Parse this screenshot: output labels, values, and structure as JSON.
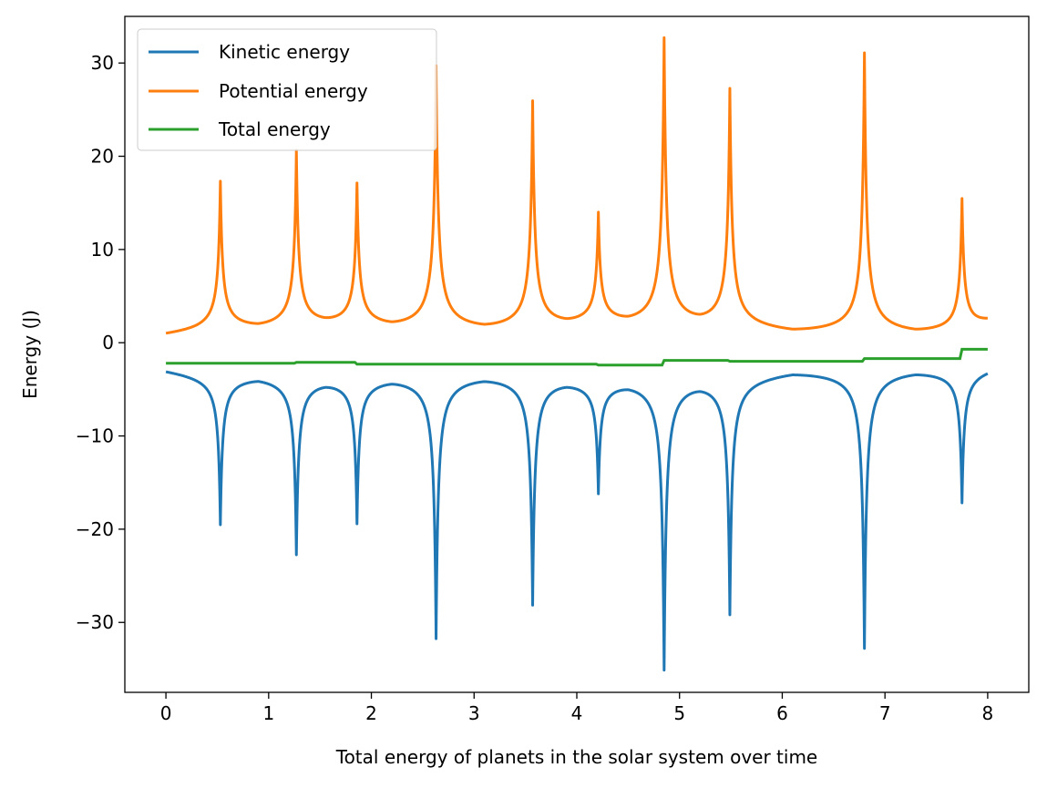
{
  "chart_data": {
    "type": "line",
    "title": "",
    "xlabel": "Total energy of planets in the solar system over time",
    "ylabel": "Energy (J)",
    "xlim": [
      -0.4,
      8.4
    ],
    "ylim": [
      -37.5,
      35
    ],
    "xticks": [
      0,
      1,
      2,
      3,
      4,
      5,
      6,
      7,
      8
    ],
    "yticks": [
      -30,
      -20,
      -10,
      0,
      10,
      20,
      30
    ],
    "ytick_labels": [
      "−30",
      "−20",
      "−10",
      "0",
      "10",
      "20",
      "30"
    ],
    "legend_position": "upper-left",
    "grid": false,
    "series": [
      {
        "name": "Kinetic energy",
        "color": "#1f77b4",
        "baseline": [
          [
            0,
            -2.5
          ],
          [
            0.3,
            -2.9
          ],
          [
            0.53,
            -3.2
          ],
          [
            0.9,
            -2.8
          ],
          [
            1.27,
            -3.2
          ],
          [
            1.55,
            -3.0
          ],
          [
            1.86,
            -3.2
          ],
          [
            2.2,
            -2.8
          ],
          [
            2.63,
            -3.0
          ],
          [
            3.1,
            -2.6
          ],
          [
            3.57,
            -2.9
          ],
          [
            3.9,
            -2.9
          ],
          [
            4.2,
            -3.3
          ],
          [
            4.5,
            -3.0
          ],
          [
            4.85,
            -3.2
          ],
          [
            5.2,
            -2.9
          ],
          [
            5.49,
            -3.1
          ],
          [
            6.1,
            -2.3
          ],
          [
            6.8,
            -2.6
          ],
          [
            7.3,
            -2.3
          ],
          [
            7.75,
            -2.7
          ],
          [
            8.0,
            -2.3
          ]
        ],
        "spikes": [
          [
            0.53,
            -19.0
          ],
          [
            1.27,
            -22.0
          ],
          [
            1.86,
            -18.5
          ],
          [
            2.63,
            -31.0
          ],
          [
            3.57,
            -27.3
          ],
          [
            4.21,
            -15.0
          ],
          [
            4.85,
            -34.2
          ],
          [
            5.49,
            -28.3
          ],
          [
            6.8,
            -32.3
          ],
          [
            7.75,
            -16.7
          ]
        ]
      },
      {
        "name": "Potential energy",
        "color": "#ff7f0e",
        "baseline": [
          [
            0,
            0.4
          ],
          [
            0.3,
            0.7
          ],
          [
            0.53,
            1.0
          ],
          [
            0.9,
            0.7
          ],
          [
            1.27,
            1.0
          ],
          [
            1.55,
            0.9
          ],
          [
            1.86,
            1.0
          ],
          [
            2.2,
            0.6
          ],
          [
            2.63,
            0.8
          ],
          [
            3.1,
            0.4
          ],
          [
            3.57,
            0.7
          ],
          [
            3.9,
            0.7
          ],
          [
            4.2,
            1.1
          ],
          [
            4.5,
            0.8
          ],
          [
            4.85,
            1.0
          ],
          [
            5.2,
            0.7
          ],
          [
            5.49,
            0.9
          ],
          [
            6.1,
            0.3
          ],
          [
            6.8,
            0.6
          ],
          [
            7.3,
            0.3
          ],
          [
            7.75,
            0.7
          ],
          [
            8.0,
            1.6
          ]
        ],
        "spikes": [
          [
            0.53,
            16.8
          ],
          [
            1.27,
            19.9
          ],
          [
            1.86,
            16.2
          ],
          [
            2.63,
            29.0
          ],
          [
            3.57,
            25.1
          ],
          [
            4.21,
            12.8
          ],
          [
            4.85,
            31.8
          ],
          [
            5.49,
            26.4
          ],
          [
            6.8,
            30.6
          ],
          [
            7.75,
            15.0
          ]
        ]
      },
      {
        "name": "Total energy",
        "color": "#2ca02c",
        "steps": [
          [
            0,
            -2.2
          ],
          [
            1.27,
            -2.1
          ],
          [
            1.86,
            -2.3
          ],
          [
            4.21,
            -2.4
          ],
          [
            4.85,
            -1.9
          ],
          [
            5.49,
            -2.0
          ],
          [
            6.8,
            -1.7
          ],
          [
            7.75,
            -0.7
          ],
          [
            8.0,
            -0.7
          ]
        ]
      }
    ]
  }
}
